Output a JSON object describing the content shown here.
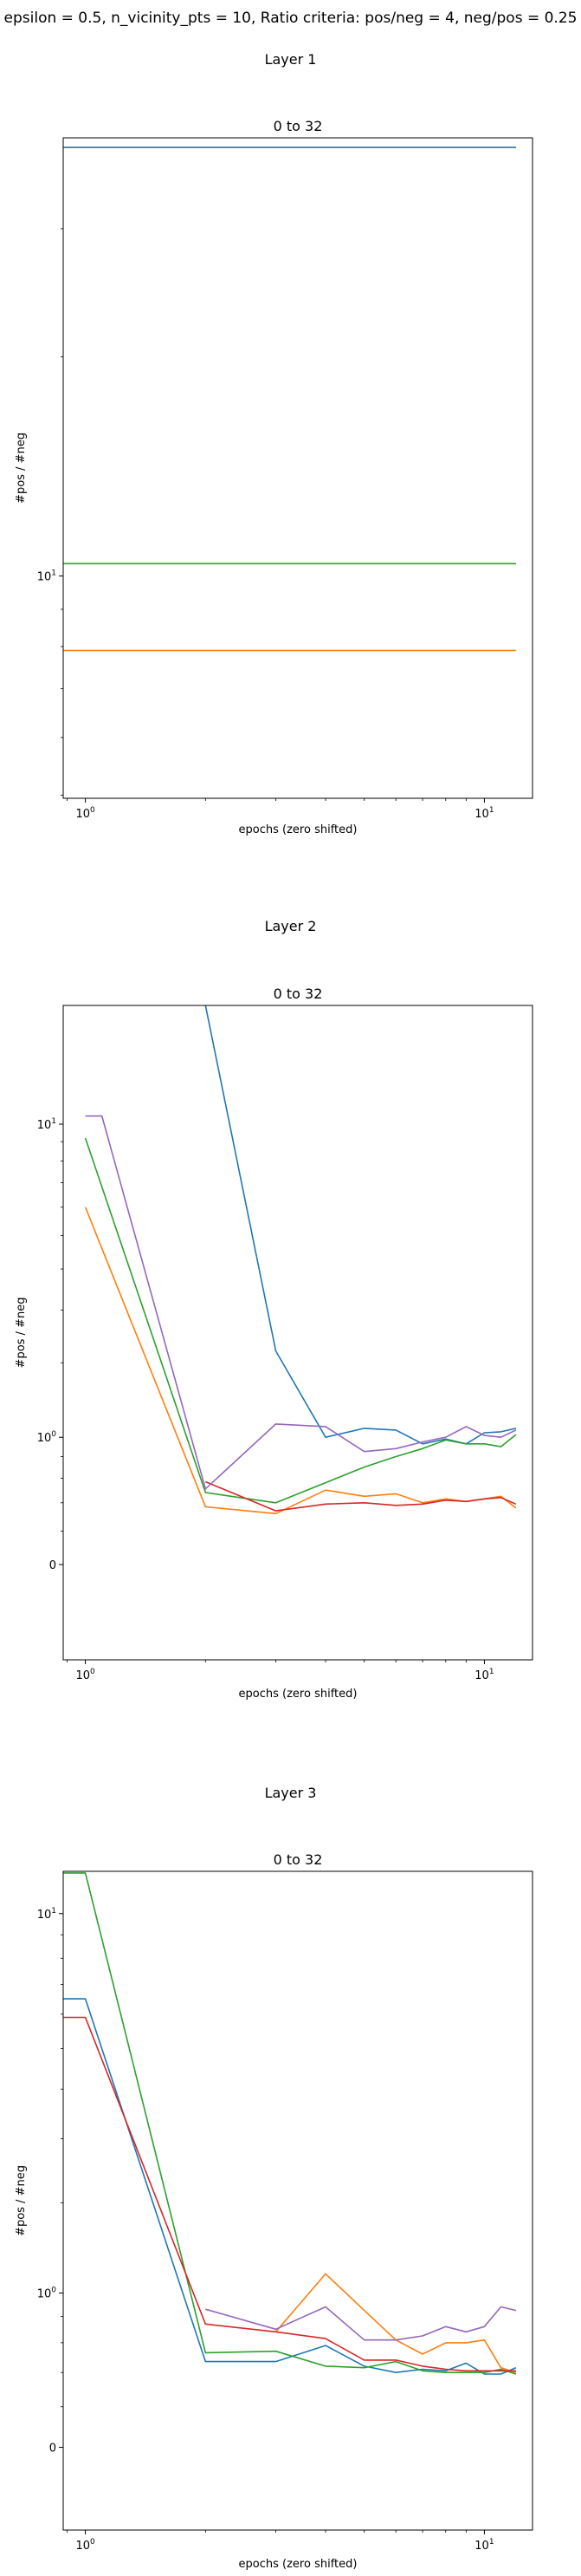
{
  "figure": {
    "suptitle": "epsilon = 0.5, n_vicinity_pts = 10, Ratio criteria: pos/neg = 4, neg/pos = 0.25"
  },
  "chart_data": [
    {
      "type": "line",
      "layer_title": "Layer 1",
      "title": "0 to 32",
      "xlabel": "epochs (zero shifted)",
      "ylabel": "#pos / #neg",
      "x_scale": "log",
      "y_scale": "log",
      "xlim": [
        0.88,
        13.2
      ],
      "ylim": [
        4.95,
        40
      ],
      "x_ticks": [
        {
          "value": 1,
          "label": "10^0"
        },
        {
          "value": 10,
          "label": "10^1"
        }
      ],
      "y_ticks": [
        {
          "value": 10,
          "label": "10^1"
        }
      ],
      "series": [
        {
          "color": "#1f77b4",
          "x": [
            0.88,
            12
          ],
          "y": [
            38.8,
            38.8
          ]
        },
        {
          "color": "#2ca02c",
          "x": [
            0.88,
            12
          ],
          "y": [
            10.4,
            10.4
          ]
        },
        {
          "color": "#ff7f0e",
          "x": [
            0.88,
            12
          ],
          "y": [
            7.9,
            7.9
          ]
        }
      ]
    },
    {
      "type": "line",
      "layer_title": "Layer 2",
      "title": "0 to 32",
      "xlabel": "epochs (zero shifted)",
      "ylabel": "#pos / #neg",
      "x_scale": "log",
      "y_scale": "symlog",
      "xlim": [
        0.88,
        13.2
      ],
      "ylim": [
        -0.68,
        20
      ],
      "x_ticks": [
        {
          "value": 1,
          "label": "10^0"
        },
        {
          "value": 10,
          "label": "10^1"
        }
      ],
      "y_ticks": [
        {
          "value": 0,
          "label": "0"
        },
        {
          "value": 1,
          "label": "10^0"
        },
        {
          "value": 10,
          "label": "10^1"
        }
      ],
      "series": [
        {
          "color": "#1f77b4",
          "x": [
            2,
            3,
            4,
            5,
            6,
            7,
            8,
            9,
            10,
            11,
            12
          ],
          "y": [
            20,
            2.2,
            1.0,
            1.1,
            1.08,
            0.93,
            0.98,
            0.93,
            1.05,
            1.06,
            1.1
          ]
        },
        {
          "color": "#ff7f0e",
          "x": [
            1,
            2,
            3,
            4,
            5,
            6,
            7,
            8,
            9,
            10,
            11,
            12
          ],
          "y": [
            6,
            0.37,
            0.32,
            0.5,
            0.45,
            0.47,
            0.4,
            0.43,
            0.41,
            0.43,
            0.45,
            0.36
          ]
        },
        {
          "color": "#2ca02c",
          "x": [
            1,
            2,
            3,
            5,
            6,
            7,
            8,
            9,
            10,
            11,
            12
          ],
          "y": [
            9.2,
            0.48,
            0.4,
            0.7,
            0.8,
            0.88,
            0.97,
            0.93,
            0.93,
            0.9,
            1.03
          ]
        },
        {
          "color": "#d62728",
          "x": [
            2,
            3,
            4,
            5,
            6,
            7,
            8,
            9,
            10,
            11,
            12
          ],
          "y": [
            0.57,
            0.34,
            0.39,
            0.4,
            0.38,
            0.39,
            0.42,
            0.41,
            0.43,
            0.44,
            0.39
          ]
        },
        {
          "color": "#9467bd",
          "x": [
            1,
            1.1,
            2,
            3,
            4,
            5,
            6,
            7,
            8,
            9,
            10,
            11,
            12
          ],
          "y": [
            10.5,
            10.5,
            0.51,
            1.15,
            1.12,
            0.85,
            0.88,
            0.95,
            1.0,
            1.12,
            1.02,
            1.0,
            1.08
          ]
        }
      ]
    },
    {
      "type": "line",
      "layer_title": "Layer 3",
      "title": "0 to 32",
      "xlabel": "epochs (zero shifted)",
      "ylabel": "#pos / #neg",
      "x_scale": "log",
      "y_scale": "symlog",
      "xlim": [
        0.88,
        13.2
      ],
      "ylim": [
        -0.45,
        12.3
      ],
      "x_ticks": [
        {
          "value": 1,
          "label": "10^0"
        },
        {
          "value": 10,
          "label": "10^1"
        }
      ],
      "y_ticks": [
        {
          "value": 0,
          "label": "0"
        },
        {
          "value": 1,
          "label": "10^0"
        },
        {
          "value": 10,
          "label": "10^1"
        }
      ],
      "series": [
        {
          "color": "#1f77b4",
          "x": [
            0.88,
            1,
            2,
            3,
            4,
            5,
            6,
            7,
            8,
            9,
            10,
            11,
            12
          ],
          "y": [
            6.5,
            6.5,
            0.47,
            0.47,
            0.58,
            0.44,
            0.4,
            0.42,
            0.41,
            0.46,
            0.39,
            0.39,
            0.43
          ]
        },
        {
          "color": "#ff7f0e",
          "x": [
            3,
            4,
            5,
            6,
            7,
            8,
            9,
            10,
            11,
            12
          ],
          "y": [
            0.68,
            1.18,
            0.85,
            0.62,
            0.52,
            0.6,
            0.6,
            0.62,
            0.43,
            0.4
          ]
        },
        {
          "color": "#2ca02c",
          "x": [
            0.88,
            1,
            2,
            3,
            4,
            5,
            6,
            7,
            8,
            9,
            10,
            11,
            12
          ],
          "y": [
            12.2,
            12.2,
            0.53,
            0.54,
            0.44,
            0.43,
            0.47,
            0.41,
            0.4,
            0.4,
            0.4,
            0.42,
            0.39
          ]
        },
        {
          "color": "#d62728",
          "x": [
            0.88,
            1,
            2,
            3,
            4,
            5,
            6,
            7,
            8,
            9,
            10,
            11,
            12
          ],
          "y": [
            5.9,
            5.9,
            0.74,
            0.68,
            0.63,
            0.48,
            0.48,
            0.44,
            0.42,
            0.41,
            0.41,
            0.41,
            0.41
          ]
        },
        {
          "color": "#9467bd",
          "x": [
            2,
            3,
            4,
            5,
            6,
            7,
            8,
            9,
            10,
            11,
            12
          ],
          "y": [
            0.86,
            0.7,
            0.88,
            0.62,
            0.62,
            0.65,
            0.72,
            0.68,
            0.72,
            0.88,
            0.85
          ]
        }
      ]
    }
  ]
}
